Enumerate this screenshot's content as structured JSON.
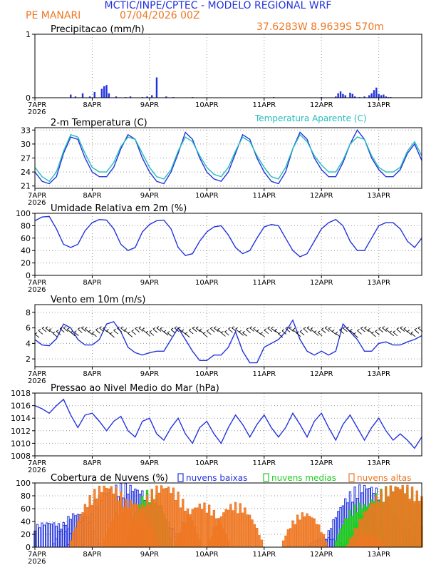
{
  "header": {
    "title": "MCTIC/INPE/CPTEC - MODELO REGIONAL WRF",
    "location": "PE MANARI",
    "run": "07/04/2026 00Z",
    "coords": "37.6283W 8.9639S 570m"
  },
  "colors": {
    "blue": "#2233dd",
    "orange": "#ee7722",
    "cyan": "#22bbbb",
    "green": "#22cc22",
    "grid": "#999999"
  },
  "time_axis": {
    "labels": [
      "7APR",
      "8APR",
      "9APR",
      "10APR",
      "11APR",
      "12APR",
      "13APR"
    ],
    "year": "2026",
    "range_hours": [
      0,
      162
    ]
  },
  "chart_data": [
    {
      "id": "precip",
      "type": "bar",
      "title": "Precipitacao (mm/h)",
      "ylim": [
        0,
        1
      ],
      "yticks": [
        0,
        1
      ],
      "grid": true,
      "series": [
        {
          "color_key": "blue",
          "points": [
            [
              15,
              0.05
            ],
            [
              17,
              0.02
            ],
            [
              20,
              0.07
            ],
            [
              23,
              0.02
            ],
            [
              25,
              0.09
            ],
            [
              28,
              0.14
            ],
            [
              29,
              0.18
            ],
            [
              30,
              0.2
            ],
            [
              31,
              0.07
            ],
            [
              34,
              0.02
            ],
            [
              38,
              0.01
            ],
            [
              40,
              0.02
            ],
            [
              45,
              0.01
            ],
            [
              47,
              0.02
            ],
            [
              49,
              0.04
            ],
            [
              51,
              0.32
            ],
            [
              55,
              0.02
            ],
            [
              58,
              0.01
            ],
            [
              66,
              0.01
            ],
            [
              100,
              0.01
            ],
            [
              120,
              0.01
            ],
            [
              126,
              0.02
            ],
            [
              127,
              0.07
            ],
            [
              128,
              0.1
            ],
            [
              129,
              0.06
            ],
            [
              130,
              0.04
            ],
            [
              132,
              0.08
            ],
            [
              133,
              0.06
            ],
            [
              134,
              0.02
            ],
            [
              136,
              0.01
            ],
            [
              138,
              0.02
            ],
            [
              140,
              0.04
            ],
            [
              141,
              0.07
            ],
            [
              142,
              0.12
            ],
            [
              143,
              0.16
            ],
            [
              144,
              0.06
            ],
            [
              145,
              0.04
            ],
            [
              146,
              0.05
            ],
            [
              147,
              0.02
            ],
            [
              148,
              0.01
            ],
            [
              149,
              0.01
            ]
          ]
        }
      ]
    },
    {
      "id": "temperature",
      "type": "line",
      "title": "2-m Temperatura (C)",
      "ylim": [
        20.5,
        33.5
      ],
      "yticks": [
        21,
        24,
        27,
        30,
        33
      ],
      "grid": true,
      "series": [
        {
          "name": "",
          "color_key": "blue",
          "x": [
            0,
            3,
            6,
            9,
            12,
            15,
            18,
            21,
            24,
            27,
            30,
            33,
            36,
            39,
            42,
            45,
            48,
            51,
            54,
            57,
            60,
            63,
            66,
            69,
            72,
            75,
            78,
            81,
            84,
            87,
            90,
            93,
            96,
            99,
            102,
            105,
            108,
            111,
            114,
            117,
            120,
            123,
            126,
            129,
            132,
            135,
            138,
            141,
            144,
            147,
            150,
            153,
            156,
            159,
            162
          ],
          "y": [
            24,
            22,
            21.5,
            23,
            28,
            31.5,
            31,
            27,
            24,
            23,
            23,
            25,
            29,
            32,
            31,
            27,
            24,
            22,
            21.5,
            24,
            28,
            32.5,
            31,
            27,
            24,
            22.5,
            22,
            24,
            28,
            32,
            31,
            27,
            24,
            22,
            21.5,
            24,
            29,
            32.5,
            31,
            27,
            24.5,
            23,
            23,
            26,
            30,
            33,
            31,
            27,
            24.5,
            23,
            23,
            24.5,
            28,
            30,
            26.5
          ]
        },
        {
          "name": "Temperatura Aparente (C)",
          "color_key": "cyan",
          "x": [
            0,
            3,
            6,
            9,
            12,
            15,
            18,
            21,
            24,
            27,
            30,
            33,
            36,
            39,
            42,
            45,
            48,
            51,
            54,
            57,
            60,
            63,
            66,
            69,
            72,
            75,
            78,
            81,
            84,
            87,
            90,
            93,
            96,
            99,
            102,
            105,
            108,
            111,
            114,
            117,
            120,
            123,
            126,
            129,
            132,
            135,
            138,
            141,
            144,
            147,
            150,
            153,
            156,
            159,
            162
          ],
          "y": [
            25,
            23,
            22,
            24,
            28.5,
            32,
            31.5,
            28,
            25,
            24,
            24,
            26,
            29.5,
            31.5,
            31,
            28,
            25,
            23,
            22.5,
            24.5,
            28.5,
            31.5,
            30.5,
            27.5,
            25,
            23.5,
            23,
            25,
            28.5,
            31.5,
            30.5,
            27.5,
            25,
            23,
            22.5,
            25,
            29,
            32,
            30.5,
            27.5,
            25.5,
            24,
            24,
            26.5,
            30,
            31.5,
            31,
            27.5,
            25,
            24,
            24,
            25,
            28.5,
            30.5,
            27.5
          ]
        }
      ]
    },
    {
      "id": "humidity",
      "type": "line",
      "title": "Umidade Relativa em 2m (%)",
      "ylim": [
        0,
        100
      ],
      "yticks": [
        0,
        20,
        40,
        60,
        80,
        100
      ],
      "grid": true,
      "series": [
        {
          "name": "",
          "color_key": "blue",
          "x": [
            0,
            3,
            6,
            9,
            12,
            15,
            18,
            21,
            24,
            27,
            30,
            33,
            36,
            39,
            42,
            45,
            48,
            51,
            54,
            57,
            60,
            63,
            66,
            69,
            72,
            75,
            78,
            81,
            84,
            87,
            90,
            93,
            96,
            99,
            102,
            105,
            108,
            111,
            114,
            117,
            120,
            123,
            126,
            129,
            132,
            135,
            138,
            141,
            144,
            147,
            150,
            153,
            156,
            159,
            162
          ],
          "y": [
            88,
            94,
            95,
            75,
            50,
            45,
            50,
            72,
            85,
            90,
            89,
            75,
            50,
            40,
            45,
            70,
            82,
            88,
            89,
            75,
            45,
            32,
            35,
            55,
            70,
            78,
            80,
            65,
            45,
            35,
            40,
            60,
            78,
            82,
            80,
            60,
            40,
            30,
            35,
            55,
            75,
            85,
            90,
            80,
            55,
            40,
            40,
            60,
            80,
            85,
            85,
            75,
            55,
            45,
            60
          ]
        }
      ]
    },
    {
      "id": "wind",
      "type": "line",
      "title": "Vento em 10m (m/s)",
      "ylim": [
        1,
        9
      ],
      "yticks": [
        2,
        4,
        6,
        8
      ],
      "grid": true,
      "series": [
        {
          "name": "",
          "color_key": "blue",
          "x": [
            0,
            3,
            6,
            9,
            12,
            15,
            18,
            21,
            24,
            27,
            30,
            33,
            36,
            39,
            42,
            45,
            48,
            51,
            54,
            57,
            60,
            63,
            66,
            69,
            72,
            75,
            78,
            81,
            84,
            87,
            90,
            93,
            96,
            99,
            102,
            105,
            108,
            111,
            114,
            117,
            120,
            123,
            126,
            129,
            132,
            135,
            138,
            141,
            144,
            147,
            150,
            153,
            156,
            159,
            162
          ],
          "y": [
            4.5,
            3.8,
            3.7,
            4.6,
            6.5,
            6,
            4.5,
            3.8,
            3.8,
            4.5,
            6.5,
            6.8,
            5.5,
            3.5,
            2.8,
            2.5,
            2.8,
            3,
            3,
            4.5,
            6,
            4.5,
            3,
            1.8,
            1.8,
            2.5,
            2.5,
            3.5,
            5.5,
            3,
            1.5,
            1.5,
            3.5,
            4,
            4.5,
            5.5,
            7,
            4.5,
            3,
            2.5,
            3,
            2.5,
            3,
            6.5,
            5.5,
            4.5,
            3,
            3,
            4,
            4.2,
            3.8,
            3.8,
            4.2,
            4.5,
            5
          ]
        }
      ]
    },
    {
      "id": "pressure",
      "type": "line",
      "title": "Pressao ao Nivel Medio do Mar (hPa)",
      "ylim": [
        1008,
        1018
      ],
      "yticks": [
        1008,
        1010,
        1012,
        1014,
        1016,
        1018
      ],
      "grid": true,
      "series": [
        {
          "name": "",
          "color_key": "blue",
          "x": [
            0,
            3,
            6,
            9,
            12,
            15,
            18,
            21,
            24,
            27,
            30,
            33,
            36,
            39,
            42,
            45,
            48,
            51,
            54,
            57,
            60,
            63,
            66,
            69,
            72,
            75,
            78,
            81,
            84,
            87,
            90,
            93,
            96,
            99,
            102,
            105,
            108,
            111,
            114,
            117,
            120,
            123,
            126,
            129,
            132,
            135,
            138,
            141,
            144,
            147,
            150,
            153,
            156,
            159,
            162
          ],
          "y": [
            1016,
            1015.5,
            1014.8,
            1016,
            1017,
            1014.5,
            1012.5,
            1014.5,
            1014.8,
            1013.5,
            1012,
            1013.5,
            1014.3,
            1012,
            1011,
            1013.5,
            1014,
            1011.5,
            1010.5,
            1012.5,
            1014,
            1011.5,
            1010,
            1012.5,
            1013.5,
            1011.5,
            1010,
            1012.5,
            1014.5,
            1013,
            1011,
            1013,
            1014.5,
            1012.5,
            1011,
            1012.5,
            1014.8,
            1013,
            1011,
            1013.5,
            1014.8,
            1012.5,
            1010.5,
            1013,
            1014.5,
            1012.5,
            1010.5,
            1012.5,
            1014,
            1012,
            1010.5,
            1011.5,
            1010.5,
            1009.2,
            1011
          ]
        }
      ]
    },
    {
      "id": "clouds",
      "type": "bar",
      "title": "Cobertura de Nuvens (%)",
      "ylim": [
        0,
        100
      ],
      "yticks": [
        0,
        20,
        40,
        60,
        80,
        100
      ],
      "grid": true,
      "legend": [
        {
          "label": "nuvens baixas",
          "color_key": "blue"
        },
        {
          "label": "nuvens medias",
          "color_key": "green"
        },
        {
          "label": "nuvens altas",
          "color_key": "orange"
        }
      ],
      "series": [
        {
          "name": "nuvens baixas",
          "color_key": "blue",
          "profiles": [
            [
              4,
              8,
              15,
              40
            ],
            [
              15,
              20,
              10,
              55
            ],
            [
              30,
              45,
              24,
              100
            ],
            [
              51,
              55,
              10,
              40
            ],
            [
              120,
              124,
              8,
              15
            ],
            [
              134,
              143,
              18,
              100
            ],
            [
              156,
              162,
              8,
              40
            ]
          ]
        },
        {
          "name": "nuvens medias",
          "color_key": "green",
          "profiles": [
            [
              45,
              51,
              10,
              90
            ],
            [
              134,
              140,
              12,
              70
            ],
            [
              142,
              160,
              22,
              98
            ],
            [
              160,
              162,
              6,
              20
            ]
          ]
        },
        {
          "name": "nuvens altas",
          "color_key": "orange",
          "profiles": [
            [
              27,
              33,
              16,
              100
            ],
            [
              37,
              43,
              12,
              75
            ],
            [
              51,
              57,
              16,
              100
            ],
            [
              67,
              73,
              12,
              70
            ],
            [
              81,
              87,
              12,
              70
            ],
            [
              110,
              116,
              10,
              55
            ],
            [
              136,
              143,
              8,
              20
            ],
            [
              144,
              161,
              22,
              100
            ]
          ]
        }
      ]
    }
  ]
}
